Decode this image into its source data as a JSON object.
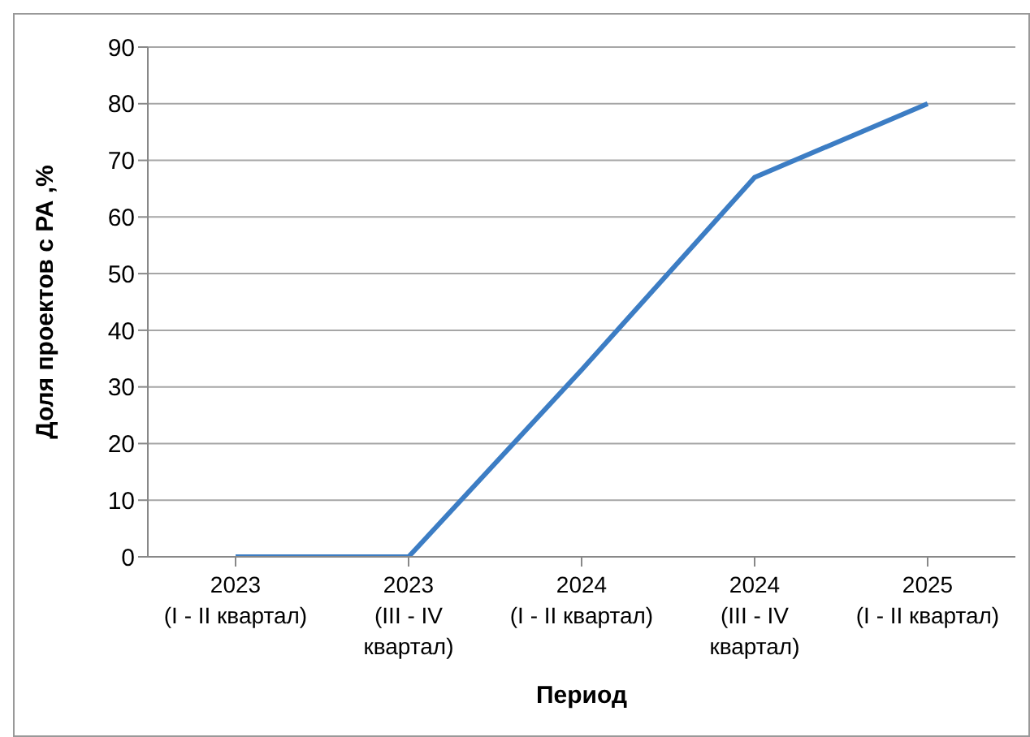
{
  "chart_data": {
    "type": "line",
    "xlabel": "Период",
    "ylabel": "Доля проектов  с РА ,%",
    "categories": [
      "2023\n(I - II квартал)",
      "2023\n(III - IV\nквартал)",
      "2024\n(I - II квартал)",
      "2024\n(III - IV\nквартал)",
      "2025\n(I - II квартал)"
    ],
    "series": [
      {
        "color": "#3c7dc4",
        "values": [
          0,
          0,
          33,
          67,
          80
        ]
      }
    ],
    "ylim": [
      0,
      90
    ],
    "yticks": [
      0,
      10,
      20,
      30,
      40,
      50,
      60,
      70,
      80,
      90
    ],
    "grid": "y",
    "legend": false,
    "marker": "none",
    "line_style": "solid"
  }
}
